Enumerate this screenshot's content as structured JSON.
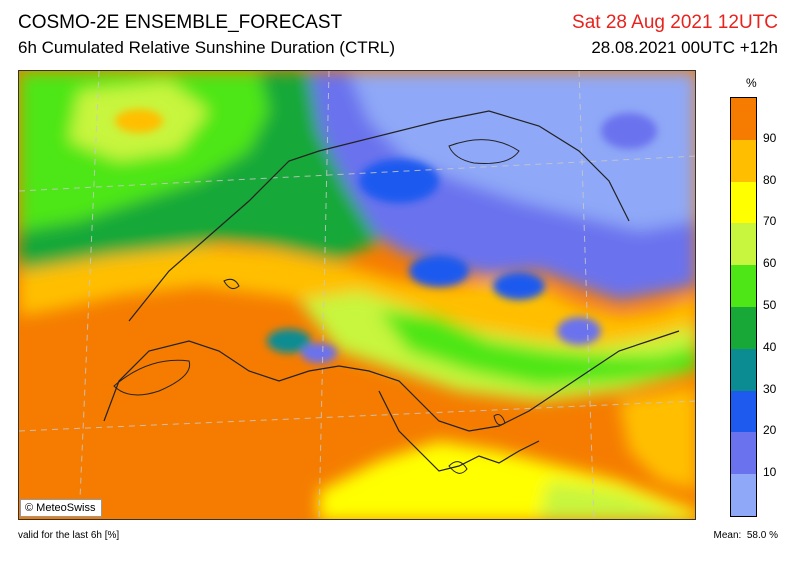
{
  "header": {
    "title": "COSMO-2E ENSEMBLE_FORECAST",
    "subtitle": "6h Cumulated Relative Sunshine Duration (CTRL)",
    "valid_time": "Sat 28 Aug 2021 12UTC",
    "run_info": "28.08.2021 00UTC +12h"
  },
  "map": {
    "copyright": "© MeteoSwiss"
  },
  "legend": {
    "unit": "%",
    "ticks": [
      "10",
      "20",
      "30",
      "40",
      "50",
      "60",
      "70",
      "80",
      "90"
    ],
    "colors": [
      "#8fa8f7",
      "#6b72ee",
      "#1f5aef",
      "#0b8c92",
      "#17a838",
      "#4ee617",
      "#c8f53d",
      "#ffff00",
      "#ffbf00",
      "#f57c00"
    ]
  },
  "footer": {
    "valid_note": "valid for the last 6h [%]",
    "mean_label": "Mean:",
    "mean_value": "58.0 %"
  }
}
